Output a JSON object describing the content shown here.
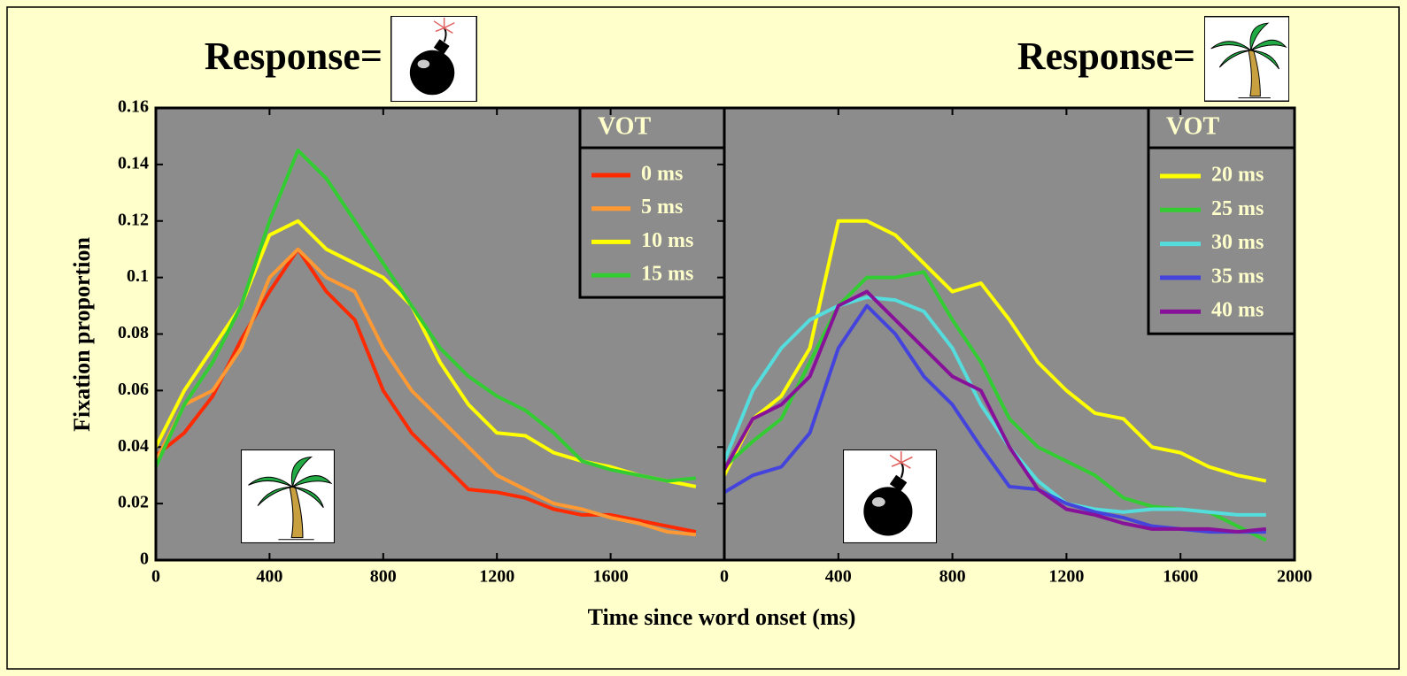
{
  "chart_data": [
    {
      "type": "line",
      "title": "Response=",
      "ylabel": "Fixation proportion",
      "xlabel": "Time since word onset (ms)",
      "legend_title": "VOT",
      "xlim": [
        0,
        2000
      ],
      "xticks": [
        0,
        400,
        800,
        1200,
        1600
      ],
      "ylim": [
        0,
        0.16
      ],
      "yticks": [
        0,
        0.02,
        0.04,
        0.06,
        0.08,
        0.1,
        0.12,
        0.14,
        0.16
      ],
      "x": [
        0,
        100,
        200,
        300,
        400,
        500,
        600,
        700,
        800,
        900,
        1000,
        1100,
        1200,
        1300,
        1400,
        1500,
        1600,
        1700,
        1800,
        1900
      ],
      "series": [
        {
          "name": "0 ms",
          "color": "#ff2a00",
          "values": [
            0.037,
            0.045,
            0.058,
            0.078,
            0.095,
            0.11,
            0.095,
            0.085,
            0.06,
            0.045,
            0.035,
            0.025,
            0.024,
            0.022,
            0.018,
            0.016,
            0.016,
            0.014,
            0.012,
            0.01
          ]
        },
        {
          "name": "5 ms",
          "color": "#ff9933",
          "values": [
            0.035,
            0.055,
            0.06,
            0.075,
            0.1,
            0.11,
            0.1,
            0.095,
            0.075,
            0.06,
            0.05,
            0.04,
            0.03,
            0.025,
            0.02,
            0.018,
            0.015,
            0.013,
            0.01,
            0.009
          ]
        },
        {
          "name": "10 ms",
          "color": "#ffff00",
          "values": [
            0.04,
            0.06,
            0.075,
            0.09,
            0.115,
            0.12,
            0.11,
            0.105,
            0.1,
            0.09,
            0.07,
            0.055,
            0.045,
            0.044,
            0.038,
            0.035,
            0.033,
            0.03,
            0.028,
            0.026
          ]
        },
        {
          "name": "15 ms",
          "color": "#33cc33",
          "values": [
            0.033,
            0.055,
            0.07,
            0.09,
            0.12,
            0.145,
            0.135,
            0.12,
            0.105,
            0.09,
            0.075,
            0.065,
            0.058,
            0.053,
            0.045,
            0.035,
            0.032,
            0.03,
            0.028,
            0.029
          ]
        }
      ]
    },
    {
      "type": "line",
      "title": "Response=",
      "legend_title": "VOT",
      "xlim": [
        0,
        2000
      ],
      "xticks": [
        0,
        400,
        800,
        1200,
        1600,
        2000
      ],
      "ylim": [
        0,
        0.16
      ],
      "x": [
        0,
        100,
        200,
        300,
        400,
        500,
        600,
        700,
        800,
        900,
        1000,
        1100,
        1200,
        1300,
        1400,
        1500,
        1600,
        1700,
        1800,
        1900
      ],
      "series": [
        {
          "name": "20 ms",
          "color": "#ffff00",
          "values": [
            0.03,
            0.05,
            0.058,
            0.075,
            0.12,
            0.12,
            0.115,
            0.105,
            0.095,
            0.098,
            0.085,
            0.07,
            0.06,
            0.052,
            0.05,
            0.04,
            0.038,
            0.033,
            0.03,
            0.028
          ]
        },
        {
          "name": "25 ms",
          "color": "#33cc33",
          "values": [
            0.033,
            0.042,
            0.05,
            0.07,
            0.09,
            0.1,
            0.1,
            0.102,
            0.085,
            0.07,
            0.05,
            0.04,
            0.035,
            0.03,
            0.022,
            0.019,
            0.018,
            0.017,
            0.012,
            0.007
          ]
        },
        {
          "name": "30 ms",
          "color": "#55dddd",
          "values": [
            0.035,
            0.06,
            0.075,
            0.085,
            0.09,
            0.093,
            0.092,
            0.088,
            0.075,
            0.055,
            0.04,
            0.028,
            0.02,
            0.018,
            0.017,
            0.018,
            0.018,
            0.017,
            0.016,
            0.016
          ]
        },
        {
          "name": "35 ms",
          "color": "#4444dd",
          "values": [
            0.024,
            0.03,
            0.033,
            0.045,
            0.075,
            0.09,
            0.08,
            0.065,
            0.055,
            0.04,
            0.026,
            0.025,
            0.02,
            0.017,
            0.015,
            0.012,
            0.011,
            0.01,
            0.01,
            0.01
          ]
        },
        {
          "name": "40 ms",
          "color": "#881199",
          "values": [
            0.032,
            0.05,
            0.055,
            0.065,
            0.09,
            0.095,
            0.085,
            0.075,
            0.065,
            0.06,
            0.04,
            0.025,
            0.018,
            0.016,
            0.013,
            0.011,
            0.011,
            0.011,
            0.01,
            0.011
          ]
        }
      ]
    }
  ]
}
